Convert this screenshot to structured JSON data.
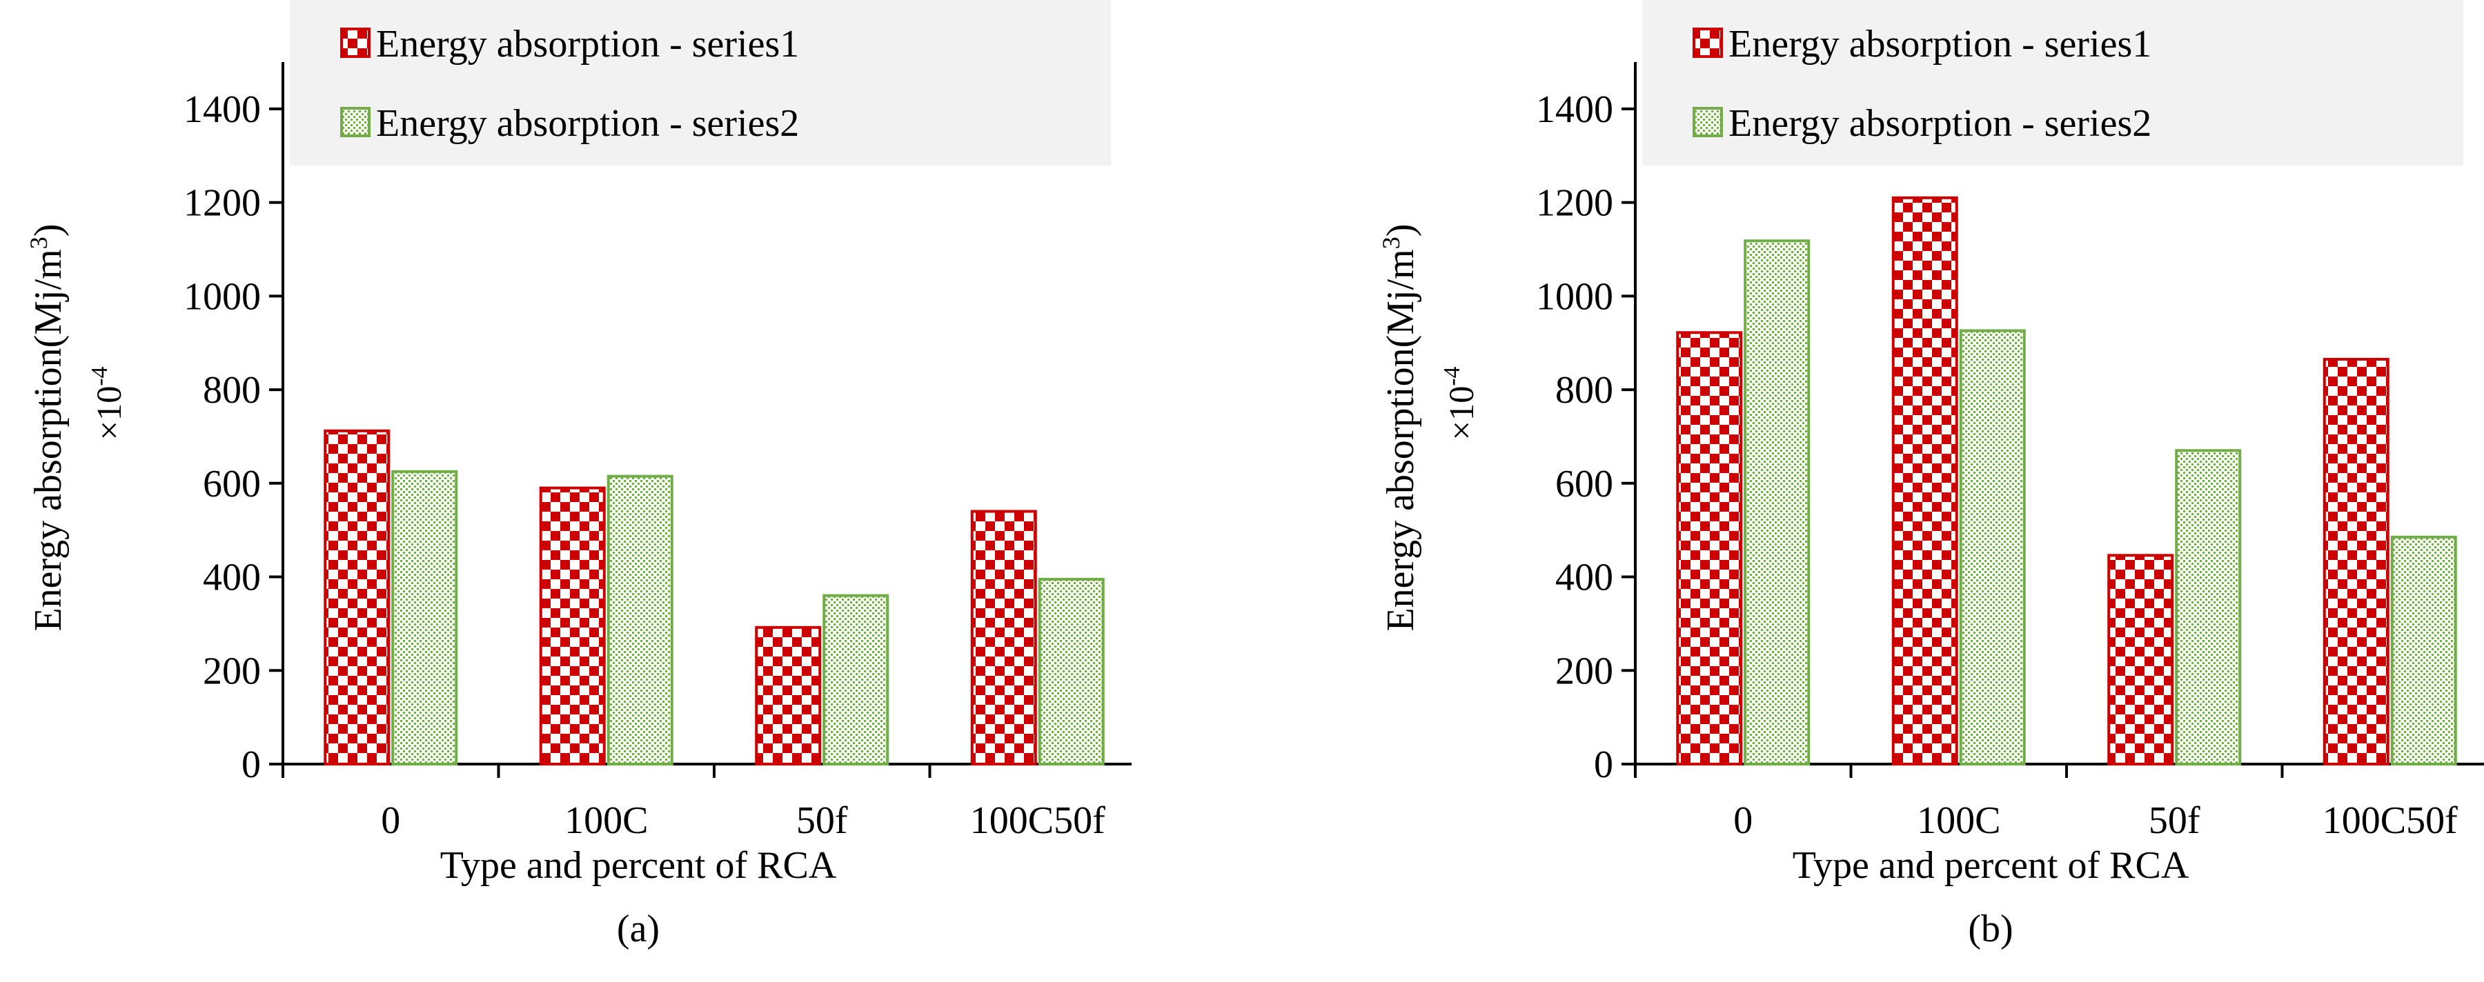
{
  "colors": {
    "series1": "#cc0000",
    "series2": "#70ad47",
    "legend_box": "#f2f2f2"
  },
  "chart_data": [
    {
      "type": "bar",
      "panel_label": "(a)",
      "categories": [
        "0",
        "100C",
        "50f",
        "100C50f"
      ],
      "series": [
        {
          "name": "Energy absorption - series1",
          "values": [
            712,
            590,
            292,
            540
          ]
        },
        {
          "name": "Energy absorption - series2",
          "values": [
            625,
            615,
            360,
            395
          ]
        }
      ],
      "xlabel": "Type and percent of RCA",
      "ylabel_main": "Energy absorption(Mj/m",
      "ylabel_sup": "3",
      "ylabel_close": ")",
      "ylabel_multiplier": "×10",
      "ylabel_exp": "-4",
      "ylim": [
        0,
        1500
      ],
      "yticks": [
        "0",
        "200",
        "400",
        "600",
        "800",
        "1000",
        "1200",
        "1400"
      ],
      "grid": false,
      "legend_position": "top"
    },
    {
      "type": "bar",
      "panel_label": "(b)",
      "categories": [
        "0",
        "100C",
        "50f",
        "100C50f"
      ],
      "series": [
        {
          "name": "Energy absorption - series1",
          "values": [
            922,
            1210,
            446,
            865
          ]
        },
        {
          "name": "Energy absorption - series2",
          "values": [
            1118,
            926,
            670,
            485
          ]
        }
      ],
      "xlabel": "Type and percent of RCA",
      "ylabel_main": "Energy absorption(Mj/m",
      "ylabel_sup": "3",
      "ylabel_close": ")",
      "ylabel_multiplier": "×10",
      "ylabel_exp": "-4",
      "ylim": [
        0,
        1500
      ],
      "yticks": [
        "0",
        "200",
        "400",
        "600",
        "800",
        "1000",
        "1200",
        "1400"
      ],
      "grid": false,
      "legend_position": "top"
    }
  ]
}
